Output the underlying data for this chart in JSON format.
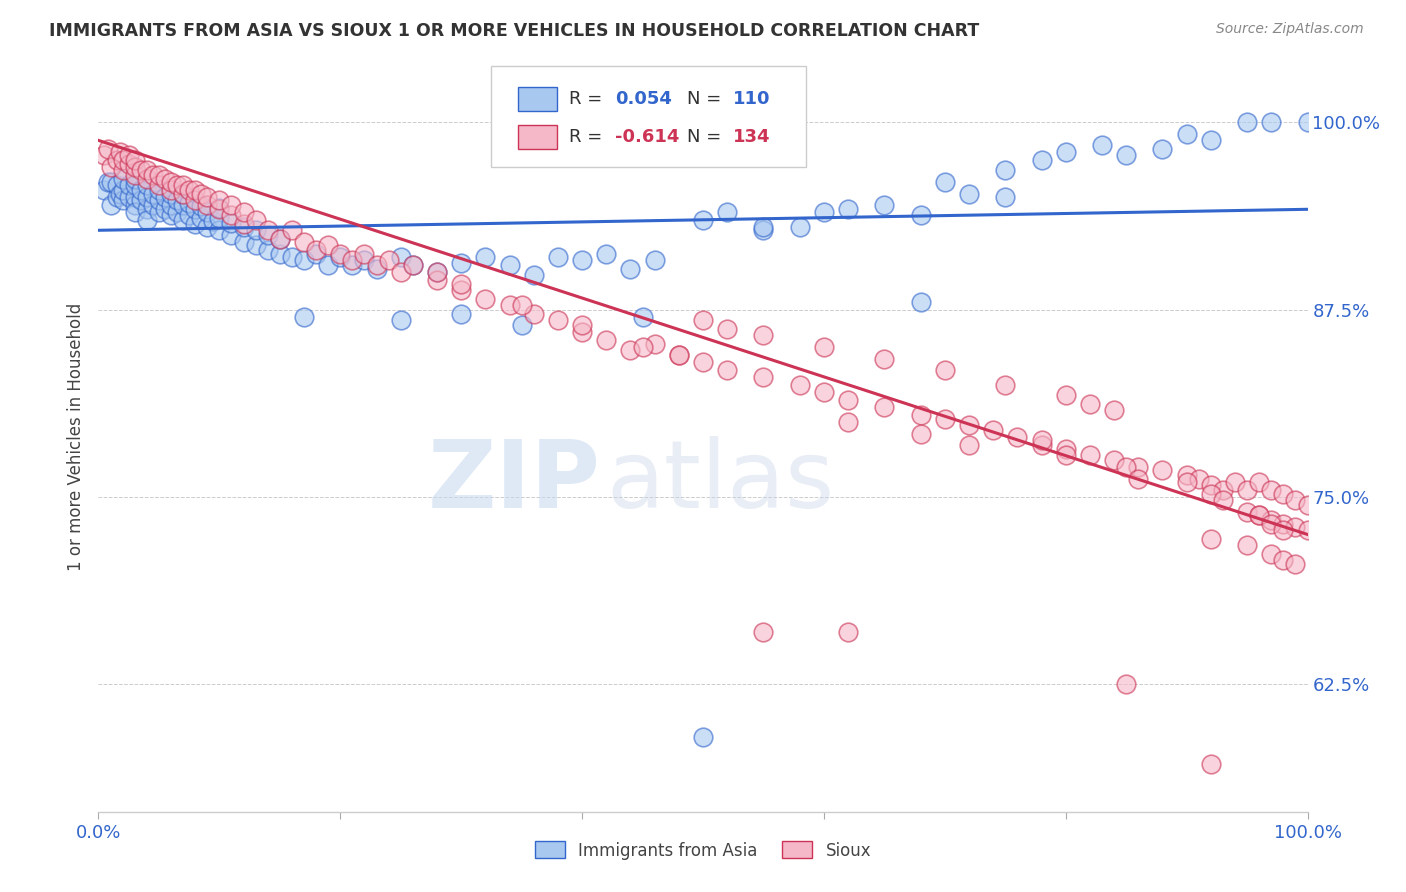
{
  "title": "IMMIGRANTS FROM ASIA VS SIOUX 1 OR MORE VEHICLES IN HOUSEHOLD CORRELATION CHART",
  "source": "Source: ZipAtlas.com",
  "ylabel": "1 or more Vehicles in Household",
  "xlim": [
    0.0,
    1.0
  ],
  "ylim": [
    0.54,
    1.04
  ],
  "yticks": [
    0.625,
    0.75,
    0.875,
    1.0
  ],
  "ytick_labels": [
    "62.5%",
    "75.0%",
    "87.5%",
    "100.0%"
  ],
  "blue_R": 0.054,
  "blue_N": 110,
  "pink_R": -0.614,
  "pink_N": 134,
  "blue_color": "#a8c8f0",
  "pink_color": "#f5b8c8",
  "blue_line_color": "#3366cc",
  "pink_line_color": "#cc3355",
  "watermark_zip": "ZIP",
  "watermark_atlas": "atlas",
  "blue_trend_x": [
    0.0,
    1.0
  ],
  "blue_trend_y": [
    0.928,
    0.942
  ],
  "pink_trend_x": [
    0.0,
    1.0
  ],
  "pink_trend_y": [
    0.988,
    0.725
  ],
  "blue_scatter_x": [
    0.005,
    0.008,
    0.01,
    0.01,
    0.015,
    0.015,
    0.018,
    0.02,
    0.02,
    0.02,
    0.025,
    0.025,
    0.03,
    0.03,
    0.03,
    0.03,
    0.03,
    0.035,
    0.035,
    0.04,
    0.04,
    0.04,
    0.04,
    0.045,
    0.045,
    0.05,
    0.05,
    0.05,
    0.055,
    0.055,
    0.06,
    0.06,
    0.06,
    0.065,
    0.065,
    0.07,
    0.07,
    0.07,
    0.075,
    0.075,
    0.08,
    0.08,
    0.085,
    0.085,
    0.09,
    0.09,
    0.095,
    0.1,
    0.1,
    0.1,
    0.11,
    0.11,
    0.12,
    0.12,
    0.13,
    0.13,
    0.14,
    0.14,
    0.15,
    0.15,
    0.16,
    0.17,
    0.18,
    0.19,
    0.2,
    0.21,
    0.22,
    0.23,
    0.25,
    0.26,
    0.28,
    0.3,
    0.32,
    0.34,
    0.36,
    0.38,
    0.4,
    0.42,
    0.44,
    0.46,
    0.5,
    0.52,
    0.55,
    0.58,
    0.62,
    0.65,
    0.68,
    0.7,
    0.72,
    0.75,
    0.78,
    0.8,
    0.83,
    0.85,
    0.88,
    0.9,
    0.92,
    0.95,
    0.97,
    1.0,
    0.5,
    0.17,
    0.25,
    0.3,
    0.35,
    0.45,
    0.55,
    0.6,
    0.68,
    0.75
  ],
  "blue_scatter_y": [
    0.955,
    0.96,
    0.945,
    0.96,
    0.95,
    0.958,
    0.952,
    0.948,
    0.955,
    0.962,
    0.95,
    0.958,
    0.945,
    0.95,
    0.958,
    0.94,
    0.962,
    0.948,
    0.955,
    0.942,
    0.95,
    0.958,
    0.935,
    0.945,
    0.952,
    0.94,
    0.948,
    0.955,
    0.942,
    0.95,
    0.938,
    0.945,
    0.952,
    0.94,
    0.948,
    0.935,
    0.945,
    0.952,
    0.938,
    0.946,
    0.932,
    0.942,
    0.936,
    0.944,
    0.93,
    0.94,
    0.934,
    0.928,
    0.936,
    0.943,
    0.925,
    0.933,
    0.92,
    0.93,
    0.918,
    0.928,
    0.915,
    0.925,
    0.912,
    0.922,
    0.91,
    0.908,
    0.912,
    0.905,
    0.91,
    0.905,
    0.908,
    0.902,
    0.91,
    0.905,
    0.9,
    0.906,
    0.91,
    0.905,
    0.898,
    0.91,
    0.908,
    0.912,
    0.902,
    0.908,
    0.935,
    0.94,
    0.928,
    0.93,
    0.942,
    0.945,
    0.938,
    0.96,
    0.952,
    0.968,
    0.975,
    0.98,
    0.985,
    0.978,
    0.982,
    0.992,
    0.988,
    1.0,
    1.0,
    1.0,
    0.59,
    0.87,
    0.868,
    0.872,
    0.865,
    0.87,
    0.93,
    0.94,
    0.88,
    0.95
  ],
  "pink_scatter_x": [
    0.005,
    0.008,
    0.01,
    0.015,
    0.018,
    0.02,
    0.02,
    0.025,
    0.025,
    0.03,
    0.03,
    0.03,
    0.035,
    0.04,
    0.04,
    0.045,
    0.05,
    0.05,
    0.055,
    0.06,
    0.06,
    0.065,
    0.07,
    0.07,
    0.075,
    0.08,
    0.08,
    0.085,
    0.09,
    0.09,
    0.1,
    0.1,
    0.11,
    0.11,
    0.12,
    0.12,
    0.13,
    0.14,
    0.15,
    0.16,
    0.17,
    0.18,
    0.19,
    0.2,
    0.21,
    0.22,
    0.23,
    0.24,
    0.25,
    0.26,
    0.28,
    0.3,
    0.32,
    0.34,
    0.36,
    0.38,
    0.4,
    0.42,
    0.44,
    0.46,
    0.48,
    0.5,
    0.52,
    0.55,
    0.58,
    0.6,
    0.62,
    0.65,
    0.68,
    0.7,
    0.72,
    0.74,
    0.76,
    0.78,
    0.8,
    0.82,
    0.84,
    0.86,
    0.88,
    0.9,
    0.91,
    0.92,
    0.93,
    0.94,
    0.95,
    0.96,
    0.97,
    0.98,
    0.99,
    1.0,
    0.95,
    0.96,
    0.97,
    0.98,
    0.99,
    1.0,
    0.5,
    0.52,
    0.55,
    0.6,
    0.65,
    0.7,
    0.75,
    0.8,
    0.82,
    0.84,
    0.28,
    0.3,
    0.35,
    0.4,
    0.45,
    0.48,
    0.62,
    0.68,
    0.72,
    0.85,
    0.9,
    0.92,
    0.93,
    0.96,
    0.97,
    0.98,
    0.86,
    0.78,
    0.8,
    0.92,
    0.95,
    0.97,
    0.98,
    0.99,
    0.62,
    0.55,
    0.92,
    0.85
  ],
  "pink_scatter_y": [
    0.978,
    0.982,
    0.97,
    0.975,
    0.98,
    0.968,
    0.975,
    0.972,
    0.978,
    0.965,
    0.97,
    0.975,
    0.968,
    0.962,
    0.968,
    0.965,
    0.958,
    0.965,
    0.962,
    0.955,
    0.96,
    0.958,
    0.952,
    0.958,
    0.955,
    0.948,
    0.955,
    0.952,
    0.945,
    0.95,
    0.942,
    0.948,
    0.938,
    0.945,
    0.932,
    0.94,
    0.935,
    0.928,
    0.922,
    0.928,
    0.92,
    0.915,
    0.918,
    0.912,
    0.908,
    0.912,
    0.905,
    0.908,
    0.9,
    0.905,
    0.895,
    0.888,
    0.882,
    0.878,
    0.872,
    0.868,
    0.86,
    0.855,
    0.848,
    0.852,
    0.845,
    0.84,
    0.835,
    0.83,
    0.825,
    0.82,
    0.815,
    0.81,
    0.805,
    0.802,
    0.798,
    0.795,
    0.79,
    0.785,
    0.782,
    0.778,
    0.775,
    0.77,
    0.768,
    0.765,
    0.762,
    0.758,
    0.755,
    0.76,
    0.755,
    0.76,
    0.755,
    0.752,
    0.748,
    0.745,
    0.74,
    0.738,
    0.735,
    0.732,
    0.73,
    0.728,
    0.868,
    0.862,
    0.858,
    0.85,
    0.842,
    0.835,
    0.825,
    0.818,
    0.812,
    0.808,
    0.9,
    0.892,
    0.878,
    0.865,
    0.85,
    0.845,
    0.8,
    0.792,
    0.785,
    0.77,
    0.76,
    0.752,
    0.748,
    0.738,
    0.732,
    0.728,
    0.762,
    0.788,
    0.778,
    0.722,
    0.718,
    0.712,
    0.708,
    0.705,
    0.66,
    0.66,
    0.572,
    0.625
  ]
}
